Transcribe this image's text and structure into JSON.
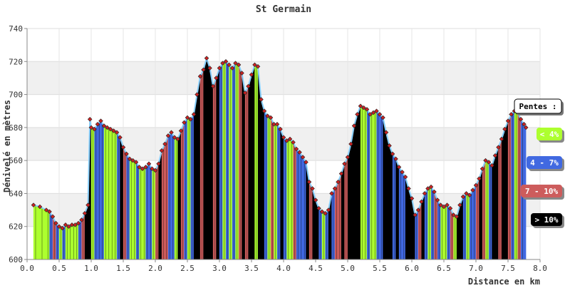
{
  "chart_data": {
    "type": "area",
    "title": "St Germain",
    "xlabel": "Distance en km",
    "ylabel": "Dénivelé en mètres",
    "xlim": [
      0,
      8
    ],
    "ylim": [
      600,
      740
    ],
    "x_ticks": [
      "0.0",
      "0.5",
      "1.0",
      "1.5",
      "2.0",
      "2.5",
      "3.0",
      "3.5",
      "4.0",
      "4.5",
      "5.0",
      "5.5",
      "6.0",
      "6.5",
      "7.0",
      "7.5",
      "8.0"
    ],
    "y_ticks": [
      "600",
      "620",
      "640",
      "660",
      "680",
      "700",
      "720",
      "740"
    ],
    "grid": true,
    "legend_position": "right",
    "legend": {
      "title": "Pentes :",
      "entries": [
        {
          "label": "< 4%",
          "color": "#adff2f",
          "text_color": "#ffffff"
        },
        {
          "label": "4 - 7%",
          "color": "#4169e1",
          "text_color": "#ffffff"
        },
        {
          "label": "7 - 10%",
          "color": "#cd5c5c",
          "text_color": "#ffffff"
        },
        {
          "label": "> 10%",
          "color": "#000000",
          "text_color": "#ffffff"
        }
      ]
    },
    "slope_colors": {
      "lt4": "#adff2f",
      "4to7": "#4169e1",
      "7to10": "#cd5c5c",
      "gt10": "#000000"
    },
    "profile": [
      [
        0.1,
        633
      ],
      [
        0.2,
        632
      ],
      [
        0.3,
        630
      ],
      [
        0.35,
        629
      ],
      [
        0.4,
        626
      ],
      [
        0.45,
        622
      ],
      [
        0.5,
        620
      ],
      [
        0.55,
        619
      ],
      [
        0.6,
        621
      ],
      [
        0.65,
        620
      ],
      [
        0.7,
        621
      ],
      [
        0.75,
        621
      ],
      [
        0.8,
        622
      ],
      [
        0.85,
        624
      ],
      [
        0.9,
        628
      ],
      [
        0.95,
        633
      ],
      [
        0.98,
        685
      ],
      [
        1.0,
        680
      ],
      [
        1.05,
        679
      ],
      [
        1.1,
        682
      ],
      [
        1.15,
        684
      ],
      [
        1.2,
        681
      ],
      [
        1.25,
        680
      ],
      [
        1.3,
        679
      ],
      [
        1.35,
        678
      ],
      [
        1.4,
        677
      ],
      [
        1.45,
        674
      ],
      [
        1.5,
        668
      ],
      [
        1.55,
        664
      ],
      [
        1.6,
        661
      ],
      [
        1.65,
        660
      ],
      [
        1.7,
        659
      ],
      [
        1.75,
        656
      ],
      [
        1.8,
        655
      ],
      [
        1.85,
        656
      ],
      [
        1.9,
        658
      ],
      [
        1.95,
        655
      ],
      [
        2.0,
        654
      ],
      [
        2.05,
        658
      ],
      [
        2.1,
        666
      ],
      [
        2.15,
        670
      ],
      [
        2.2,
        675
      ],
      [
        2.25,
        677
      ],
      [
        2.3,
        674
      ],
      [
        2.35,
        673
      ],
      [
        2.4,
        678
      ],
      [
        2.45,
        683
      ],
      [
        2.5,
        686
      ],
      [
        2.55,
        685
      ],
      [
        2.6,
        688
      ],
      [
        2.65,
        700
      ],
      [
        2.7,
        711
      ],
      [
        2.75,
        715
      ],
      [
        2.8,
        722
      ],
      [
        2.85,
        716
      ],
      [
        2.9,
        705
      ],
      [
        2.95,
        710
      ],
      [
        3.0,
        716
      ],
      [
        3.05,
        719
      ],
      [
        3.1,
        720
      ],
      [
        3.15,
        718
      ],
      [
        3.2,
        716
      ],
      [
        3.25,
        719
      ],
      [
        3.3,
        718
      ],
      [
        3.35,
        713
      ],
      [
        3.4,
        701
      ],
      [
        3.45,
        705
      ],
      [
        3.5,
        712
      ],
      [
        3.55,
        718
      ],
      [
        3.6,
        717
      ],
      [
        3.65,
        697
      ],
      [
        3.7,
        690
      ],
      [
        3.75,
        687
      ],
      [
        3.8,
        686
      ],
      [
        3.85,
        682
      ],
      [
        3.9,
        682
      ],
      [
        3.95,
        679
      ],
      [
        4.0,
        674
      ],
      [
        4.05,
        672
      ],
      [
        4.1,
        673
      ],
      [
        4.15,
        671
      ],
      [
        4.2,
        667
      ],
      [
        4.25,
        665
      ],
      [
        4.3,
        662
      ],
      [
        4.35,
        659
      ],
      [
        4.4,
        647
      ],
      [
        4.45,
        643
      ],
      [
        4.5,
        636
      ],
      [
        4.55,
        631
      ],
      [
        4.6,
        629
      ],
      [
        4.65,
        628
      ],
      [
        4.7,
        630
      ],
      [
        4.75,
        640
      ],
      [
        4.8,
        643
      ],
      [
        4.85,
        647
      ],
      [
        4.9,
        652
      ],
      [
        4.95,
        658
      ],
      [
        5.0,
        662
      ],
      [
        5.05,
        670
      ],
      [
        5.1,
        681
      ],
      [
        5.15,
        688
      ],
      [
        5.2,
        693
      ],
      [
        5.25,
        692
      ],
      [
        5.3,
        691
      ],
      [
        5.35,
        688
      ],
      [
        5.4,
        689
      ],
      [
        5.45,
        690
      ],
      [
        5.5,
        688
      ],
      [
        5.55,
        686
      ],
      [
        5.6,
        677
      ],
      [
        5.65,
        669
      ],
      [
        5.7,
        664
      ],
      [
        5.75,
        661
      ],
      [
        5.8,
        656
      ],
      [
        5.85,
        653
      ],
      [
        5.9,
        650
      ],
      [
        5.95,
        643
      ],
      [
        6.0,
        637
      ],
      [
        6.05,
        627
      ],
      [
        6.1,
        630
      ],
      [
        6.15,
        635
      ],
      [
        6.2,
        640
      ],
      [
        6.25,
        643
      ],
      [
        6.3,
        644
      ],
      [
        6.35,
        641
      ],
      [
        6.4,
        636
      ],
      [
        6.45,
        633
      ],
      [
        6.5,
        632
      ],
      [
        6.55,
        633
      ],
      [
        6.6,
        631
      ],
      [
        6.65,
        627
      ],
      [
        6.7,
        626
      ],
      [
        6.75,
        633
      ],
      [
        6.8,
        638
      ],
      [
        6.85,
        640
      ],
      [
        6.9,
        639
      ],
      [
        6.95,
        642
      ],
      [
        7.0,
        645
      ],
      [
        7.05,
        649
      ],
      [
        7.1,
        655
      ],
      [
        7.15,
        660
      ],
      [
        7.2,
        659
      ],
      [
        7.25,
        657
      ],
      [
        7.3,
        663
      ],
      [
        7.35,
        668
      ],
      [
        7.4,
        673
      ],
      [
        7.45,
        679
      ],
      [
        7.5,
        684
      ],
      [
        7.55,
        688
      ],
      [
        7.6,
        690
      ],
      [
        7.65,
        689
      ],
      [
        7.7,
        685
      ],
      [
        7.75,
        682
      ],
      [
        7.78,
        680
      ]
    ]
  }
}
